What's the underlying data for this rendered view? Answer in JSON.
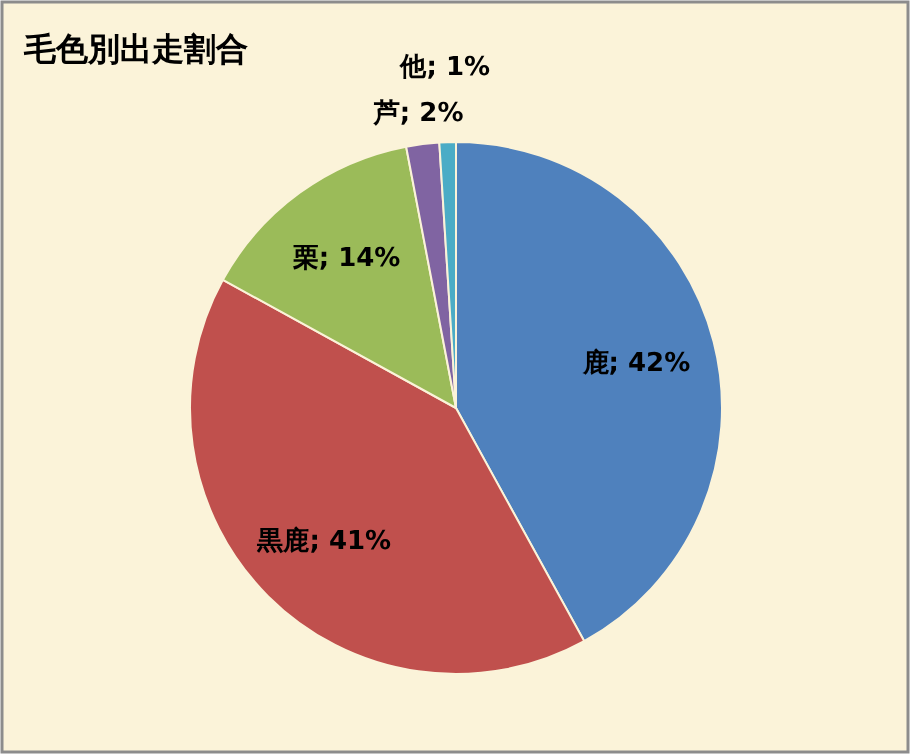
{
  "chart_data": {
    "type": "pie",
    "title": "毛色別出走割合",
    "categories": [
      "鹿",
      "黒鹿",
      "栗",
      "芦",
      "他"
    ],
    "values": [
      42,
      41,
      14,
      2,
      1
    ],
    "colors": [
      "#4f81bd",
      "#c0504d",
      "#9bbb59",
      "#8064a2",
      "#4bacc6"
    ],
    "value_labels": [
      "; 42%",
      "; 41%",
      "; 14%",
      "; 2%",
      "; 1%"
    ]
  }
}
